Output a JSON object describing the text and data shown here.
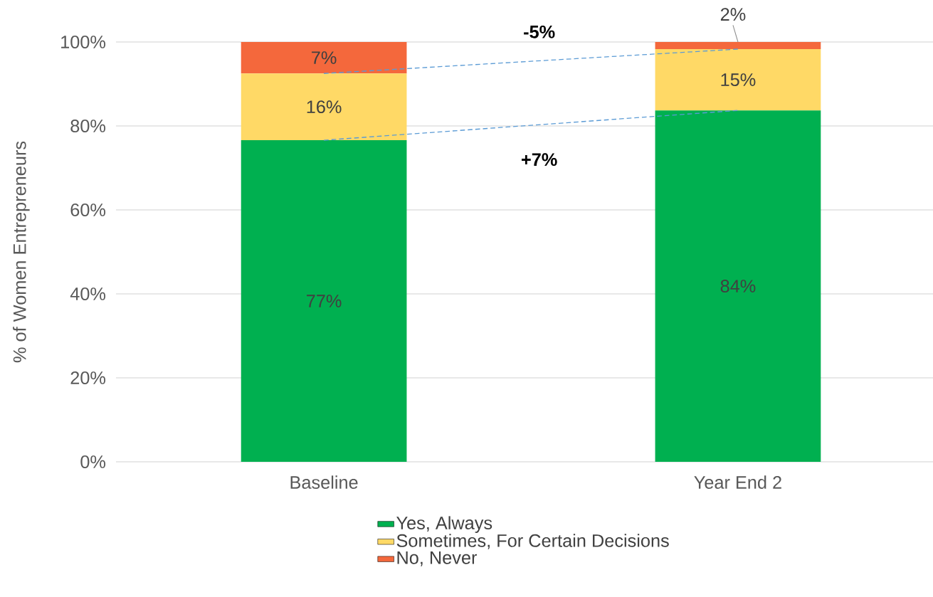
{
  "chart_data": {
    "type": "bar",
    "stacked": true,
    "categories": [
      "Baseline",
      "Year End 2"
    ],
    "ylabel": "% of Women Entrepreneurs",
    "series": [
      {
        "name": "Yes, Always",
        "color": "#00b050",
        "values": [
          76.6,
          83.7
        ],
        "value_labels": [
          "77%",
          "84%"
        ]
      },
      {
        "name": "Sometimes, For Certain Decisions",
        "color": "#ffd966",
        "values": [
          15.9,
          14.6
        ],
        "value_labels": [
          "16%",
          "15%"
        ]
      },
      {
        "name": "No, Never",
        "color": "#f4683c",
        "values": [
          7.5,
          1.7
        ],
        "value_labels": [
          "7%",
          "2%"
        ]
      },
      {
        "type": "line",
        "color": "#5b9bd5",
        "line_style": "dashed",
        "marker": "none",
        "values": [
          76.6,
          83.7
        ]
      },
      {
        "type": "line",
        "color": "#5b9bd5",
        "line_style": "dashed",
        "marker": "none",
        "values": [
          92.5,
          98.3
        ]
      }
    ],
    "ylim": [
      0,
      100
    ],
    "yticks": [
      {
        "value": 0,
        "label": "0%"
      },
      {
        "value": 20,
        "label": "20%"
      },
      {
        "value": 40,
        "label": "40%"
      },
      {
        "value": 60,
        "label": "60%"
      },
      {
        "value": 80,
        "label": "80%"
      },
      {
        "value": 100,
        "label": "100%"
      }
    ],
    "grid": "y",
    "legend": "bottom",
    "annotations": [
      "-5%",
      "+7%"
    ]
  }
}
